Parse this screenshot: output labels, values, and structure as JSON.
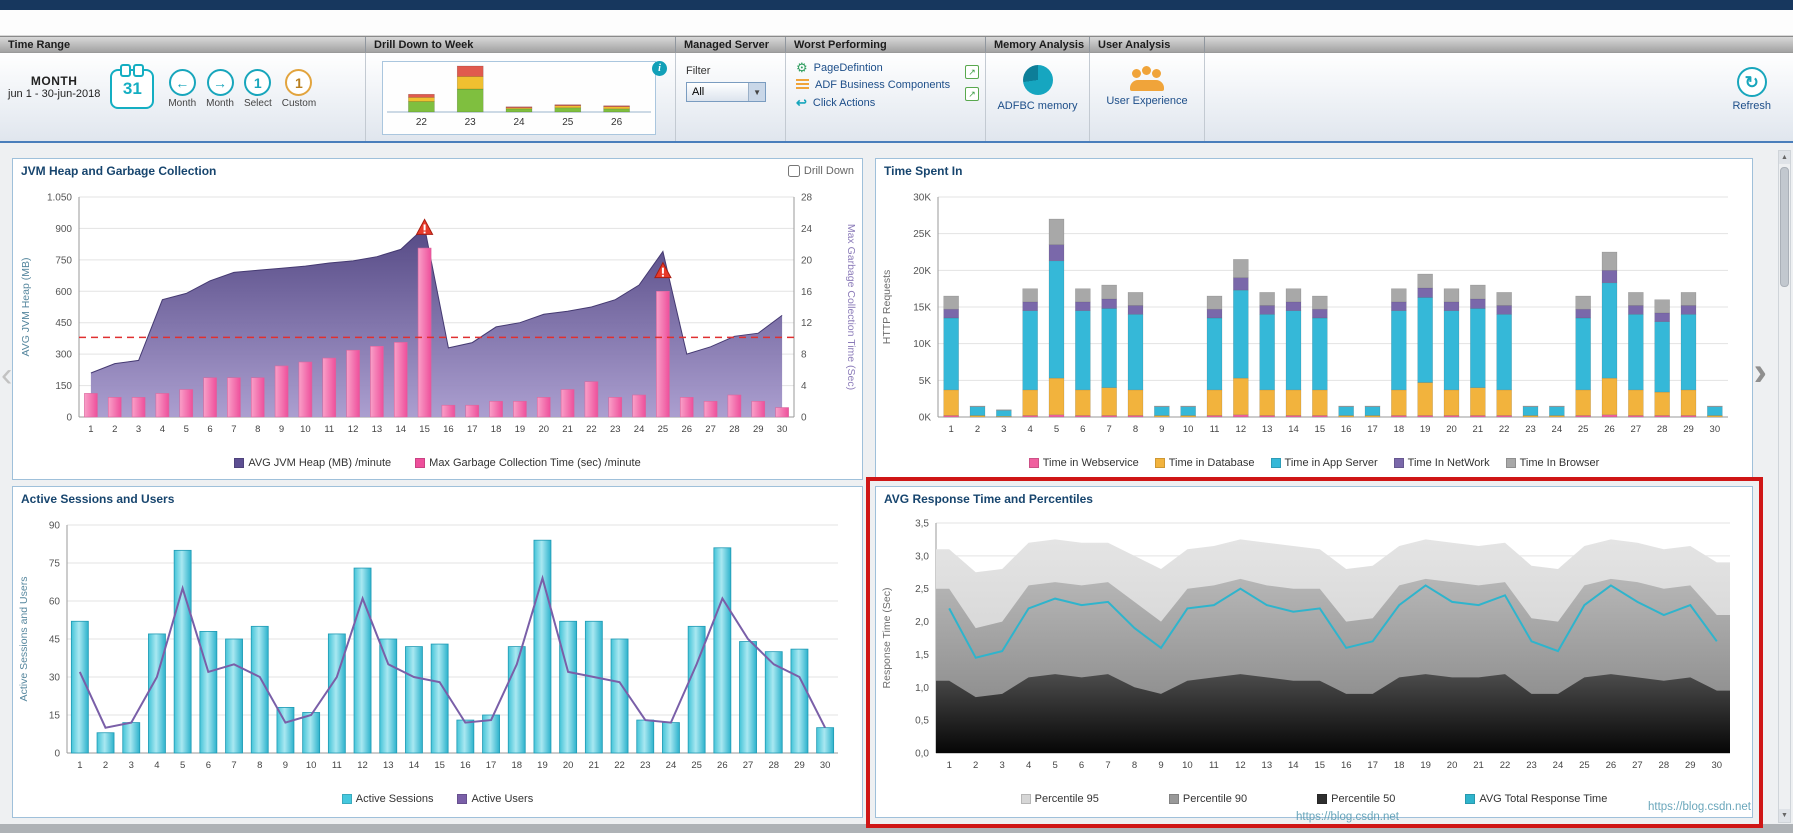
{
  "header": {
    "sections": {
      "time_range": "Time Range",
      "drill_down": "Drill Down to Week",
      "managed_server": "Managed Server",
      "worst_performing": "Worst Performing",
      "memory_analysis": "Memory Analysis",
      "user_analysis": "User Analysis"
    }
  },
  "icons": {
    "info": "i",
    "dropdown": "▼",
    "gear": "⚙",
    "reply": "↩",
    "external": "↗",
    "refresh": "↻",
    "up": "▲",
    "down": "▼",
    "left_chevron": "‹",
    "right_chevron": "›"
  },
  "colors": {
    "accent_teal": "#18a6bc",
    "accent_orange": "#f0a43a",
    "highlight_red": "#cf1616",
    "threshold_red": "#e03030"
  },
  "toolbar": {
    "time_range": {
      "period": "MONTH",
      "range": "jun 1 - 30-jun-2018",
      "calendar_day": "31",
      "buttons": [
        {
          "label": "Month",
          "glyph": "←"
        },
        {
          "label": "Month",
          "glyph": "→"
        },
        {
          "label": "Select",
          "glyph": "1"
        },
        {
          "label": "Custom",
          "glyph": "1"
        }
      ]
    },
    "drill_week": {
      "weeks": [
        "22",
        "23",
        "24",
        "25",
        "26"
      ],
      "stacks": [
        [
          10,
          4,
          3
        ],
        [
          22,
          12,
          10
        ],
        [
          3,
          1,
          1
        ],
        [
          4,
          2,
          1
        ],
        [
          3,
          2,
          1
        ]
      ],
      "colors": [
        "#7fbf3f",
        "#f0c030",
        "#e05a4e"
      ]
    },
    "filter": {
      "label": "Filter",
      "value": "All"
    },
    "worst": {
      "items": [
        {
          "label": "PageDefintion"
        },
        {
          "label": "ADF Business Components"
        },
        {
          "label": "Click Actions"
        }
      ]
    },
    "memory": {
      "label": "ADFBC memory"
    },
    "user": {
      "label": "User Experience"
    },
    "refresh": {
      "label": "Refresh"
    }
  },
  "panels": {
    "jvm": {
      "title": "JVM Heap and Garbage Collection",
      "drilldown_label": "Drill Down"
    },
    "time_spent": {
      "title": "Time Spent In"
    },
    "sessions": {
      "title": "Active Sessions and Users"
    },
    "percentiles": {
      "title": "AVG Response Time and Percentiles"
    }
  },
  "watermark": "https://blog.csdn.net",
  "chart_data": [
    {
      "id": "jvm",
      "type": "combo-area-bar",
      "title": "JVM Heap and Garbage Collection",
      "x": [
        1,
        2,
        3,
        4,
        5,
        6,
        7,
        8,
        9,
        10,
        11,
        12,
        13,
        14,
        15,
        16,
        17,
        18,
        19,
        20,
        21,
        22,
        23,
        24,
        25,
        26,
        27,
        28,
        29,
        30
      ],
      "ylabel_left": "AVG JVM Heap (MB)",
      "ylabel_right": "Max Garbage Collection Time (Sec)",
      "ylim_left": [
        0,
        1050
      ],
      "ytick_labels_left": [
        "0",
        "150",
        "300",
        "450",
        "600",
        "750",
        "900",
        "1.050"
      ],
      "ylim_right": [
        0,
        28
      ],
      "ytick_labels_right": [
        "0",
        "4",
        "8",
        "12",
        "16",
        "20",
        "24",
        "28"
      ],
      "threshold": {
        "axis": "left",
        "value": 380,
        "color": "#e03030"
      },
      "alerts": [
        {
          "x": 15,
          "value": 24
        },
        {
          "x": 25,
          "value": 18.5
        }
      ],
      "series": [
        {
          "name": "AVG JVM Heap (MB) /minute",
          "type": "area",
          "axis": "left",
          "color": "#5d4f92",
          "values": [
            210,
            255,
            270,
            560,
            590,
            650,
            690,
            700,
            710,
            720,
            735,
            745,
            765,
            800,
            905,
            330,
            355,
            430,
            450,
            490,
            505,
            525,
            560,
            630,
            790,
            300,
            335,
            385,
            400,
            485
          ]
        },
        {
          "name": "Max Garbage Collection Time (sec) /minute",
          "type": "bar",
          "axis": "right",
          "color": "#ee4f9b",
          "values": [
            3,
            2.5,
            2.5,
            3,
            3.5,
            5,
            5,
            5,
            6.5,
            7,
            7.5,
            8.5,
            9,
            9.5,
            21.5,
            1.5,
            1.5,
            2,
            2,
            2.5,
            3.5,
            4.5,
            2.5,
            2.8,
            16,
            2.5,
            2,
            2.8,
            2,
            1.2
          ]
        }
      ]
    },
    {
      "id": "time_spent",
      "type": "stacked-bar",
      "title": "Time Spent In",
      "x": [
        1,
        2,
        3,
        4,
        5,
        6,
        7,
        8,
        9,
        10,
        11,
        12,
        13,
        14,
        15,
        16,
        17,
        18,
        19,
        20,
        21,
        22,
        23,
        24,
        25,
        26,
        27,
        28,
        29,
        30
      ],
      "ylabel": "HTTP Requests",
      "ylim": [
        0,
        30
      ],
      "ytick_labels": [
        "0K",
        "5K",
        "10K",
        "15K",
        "20K",
        "25K",
        "30K"
      ],
      "unit": "K",
      "series": [
        {
          "name": "Time in Webservice",
          "color": "#f0609f",
          "values": [
            0.2,
            0,
            0,
            0.2,
            0.3,
            0.2,
            0.2,
            0.2,
            0,
            0,
            0.2,
            0.3,
            0.2,
            0.2,
            0.2,
            0,
            0,
            0.2,
            0.2,
            0.2,
            0.2,
            0.2,
            0,
            0,
            0.2,
            0.3,
            0.2,
            0.2,
            0.2,
            0
          ]
        },
        {
          "name": "Time in Database",
          "color": "#f2b33d",
          "values": [
            3.5,
            0.2,
            0.1,
            3.5,
            5,
            3.5,
            3.8,
            3.5,
            0.2,
            0.2,
            3.5,
            5,
            3.5,
            3.5,
            3.5,
            0.2,
            0.2,
            3.5,
            4.5,
            3.5,
            3.8,
            3.5,
            0.2,
            0.2,
            3.5,
            5,
            3.5,
            3.2,
            3.5,
            0.2
          ]
        },
        {
          "name": "Time in App Server",
          "color": "#35b8d8",
          "values": [
            9.8,
            1.2,
            0.8,
            10.8,
            16,
            10.8,
            10.8,
            10.3,
            1.2,
            1.2,
            9.8,
            12,
            10.3,
            10.8,
            9.8,
            1.2,
            1.2,
            10.8,
            11.6,
            10.8,
            10.8,
            10.3,
            1.2,
            1.2,
            9.8,
            13,
            10.3,
            9.6,
            10.3,
            1.2
          ]
        },
        {
          "name": "Time In NetWork",
          "color": "#7a68aa",
          "values": [
            1.2,
            0,
            0,
            1.2,
            2.2,
            1.2,
            1.3,
            1.2,
            0,
            0,
            1.2,
            1.7,
            1.2,
            1.2,
            1.2,
            0,
            0,
            1.2,
            1.3,
            1.2,
            1.3,
            1.2,
            0,
            0,
            1.2,
            1.7,
            1.2,
            1.2,
            1.2,
            0
          ]
        },
        {
          "name": "Time In Browser",
          "color": "#a8a8a8",
          "values": [
            1.8,
            0.1,
            0.1,
            1.8,
            3.5,
            1.8,
            1.9,
            1.8,
            0.1,
            0.1,
            1.8,
            2.5,
            1.8,
            1.8,
            1.8,
            0.1,
            0.1,
            1.8,
            1.9,
            1.8,
            1.9,
            1.8,
            0.1,
            0.1,
            1.8,
            2.5,
            1.8,
            1.8,
            1.8,
            0.1
          ]
        }
      ]
    },
    {
      "id": "sessions",
      "type": "bar-line",
      "title": "Active Sessions and Users",
      "x": [
        1,
        2,
        3,
        4,
        5,
        6,
        7,
        8,
        9,
        10,
        11,
        12,
        13,
        14,
        15,
        16,
        17,
        18,
        19,
        20,
        21,
        22,
        23,
        24,
        25,
        26,
        27,
        28,
        29,
        30
      ],
      "ylabel": "Active Sessions and Users",
      "ylim": [
        0,
        90
      ],
      "ytick_labels": [
        "0",
        "15",
        "30",
        "45",
        "60",
        "75",
        "90"
      ],
      "series": [
        {
          "name": "Active Sessions",
          "type": "bar",
          "color": "#45c8de",
          "values": [
            52,
            8,
            12,
            47,
            80,
            48,
            45,
            50,
            18,
            16,
            47,
            73,
            45,
            42,
            43,
            13,
            15,
            42,
            84,
            52,
            52,
            45,
            13,
            12,
            50,
            81,
            44,
            40,
            41,
            10
          ]
        },
        {
          "name": "Active Users",
          "type": "line",
          "color": "#7a5fa8",
          "values": [
            32,
            10,
            12,
            30,
            65,
            32,
            35,
            30,
            12,
            15,
            30,
            61,
            35,
            30,
            28,
            12,
            13,
            35,
            69,
            32,
            30,
            28,
            13,
            12,
            35,
            61,
            45,
            35,
            30,
            10
          ]
        }
      ]
    },
    {
      "id": "percentiles",
      "type": "area-line",
      "title": "AVG Response Time and Percentiles",
      "x": [
        1,
        2,
        3,
        4,
        5,
        6,
        7,
        8,
        9,
        10,
        11,
        12,
        13,
        14,
        15,
        16,
        17,
        18,
        19,
        20,
        21,
        22,
        23,
        24,
        25,
        26,
        27,
        28,
        29,
        30
      ],
      "ylabel": "Response Time (Sec)",
      "ylim": [
        0,
        3.5
      ],
      "ytick_labels": [
        "0,0",
        "0,5",
        "1,0",
        "1,5",
        "2,0",
        "2,5",
        "3,0",
        "3,5"
      ],
      "series": [
        {
          "name": "Percentile 95",
          "type": "area",
          "color": "#d6d6d6",
          "values": [
            3.1,
            2.75,
            2.8,
            3.2,
            3.25,
            3.2,
            3.2,
            3.0,
            2.8,
            3.1,
            3.15,
            3.25,
            3.2,
            3.15,
            3.1,
            2.8,
            2.85,
            3.15,
            3.25,
            3.2,
            3.15,
            3.2,
            2.85,
            2.8,
            3.15,
            3.25,
            3.2,
            3.1,
            3.15,
            2.9
          ]
        },
        {
          "name": "Percentile 90",
          "type": "area",
          "color": "#999999",
          "values": [
            2.5,
            1.9,
            2.0,
            2.55,
            2.6,
            2.55,
            2.6,
            2.3,
            2.0,
            2.5,
            2.55,
            2.65,
            2.55,
            2.5,
            2.5,
            2.0,
            2.05,
            2.55,
            2.65,
            2.6,
            2.55,
            2.6,
            2.05,
            2.0,
            2.55,
            2.65,
            2.6,
            2.5,
            2.55,
            2.1
          ]
        },
        {
          "name": "Percentile 50",
          "type": "area",
          "color": "#2e2e2e",
          "values": [
            1.1,
            0.85,
            0.9,
            1.15,
            1.2,
            1.15,
            1.2,
            1.0,
            0.9,
            1.1,
            1.15,
            1.2,
            1.15,
            1.1,
            1.1,
            0.9,
            0.9,
            1.15,
            1.2,
            1.15,
            1.15,
            1.2,
            0.9,
            0.9,
            1.15,
            1.2,
            1.15,
            1.1,
            1.15,
            0.95
          ]
        },
        {
          "name": "AVG Total Response Time",
          "type": "line",
          "color": "#2fb4cc",
          "values": [
            2.2,
            1.45,
            1.55,
            2.2,
            2.35,
            2.25,
            2.3,
            1.9,
            1.6,
            2.2,
            2.25,
            2.5,
            2.25,
            2.15,
            2.2,
            1.6,
            1.7,
            2.25,
            2.55,
            2.3,
            2.25,
            2.4,
            1.7,
            1.55,
            2.25,
            2.55,
            2.3,
            2.1,
            2.25,
            1.7
          ]
        }
      ]
    }
  ]
}
